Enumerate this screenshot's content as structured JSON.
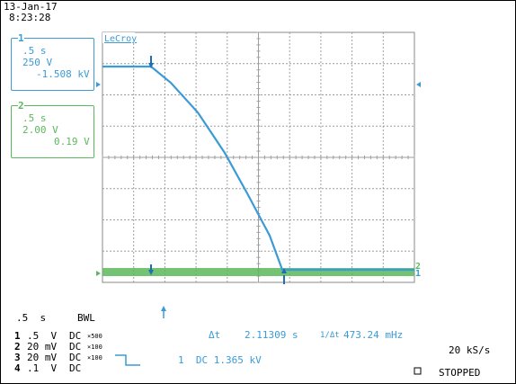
{
  "header": {
    "date": "13-Jan-17",
    "time": "8:23:28"
  },
  "brand": "LeCroy",
  "channel1_box": {
    "number": "1",
    "timebase": ".5 s",
    "volts_div": "250 V",
    "value": "-1.508 kV"
  },
  "channel2_box": {
    "number": "2",
    "timebase": ".5 s",
    "volts_div": "2.00 V",
    "value": "0.19 V"
  },
  "status_bar": {
    "timebase": ".5  s",
    "bwl": "BWL",
    "delta_t_label": "Δt",
    "delta_t_value": "2.11309 s",
    "freq_label": "1/Δt",
    "freq_value": "473.24 mHz",
    "sample_rate": "20 kS/s",
    "run_state": "STOPPED",
    "trigger_info": "1  DC 1.365 kV"
  },
  "channels": [
    {
      "num": "1",
      "scale": ".5  V",
      "coupling": "DC",
      "probe": "×500"
    },
    {
      "num": "2",
      "scale": "20 mV",
      "coupling": "DC",
      "probe": "×100"
    },
    {
      "num": "3",
      "scale": "20 mV",
      "coupling": "DC",
      "probe": "×100"
    },
    {
      "num": "4",
      "scale": ".1  V",
      "coupling": "DC",
      "probe": ""
    }
  ],
  "colors": {
    "ch1": "#3a9bd6",
    "ch2": "#5cb85c",
    "grid": "#9e9e9e"
  }
}
